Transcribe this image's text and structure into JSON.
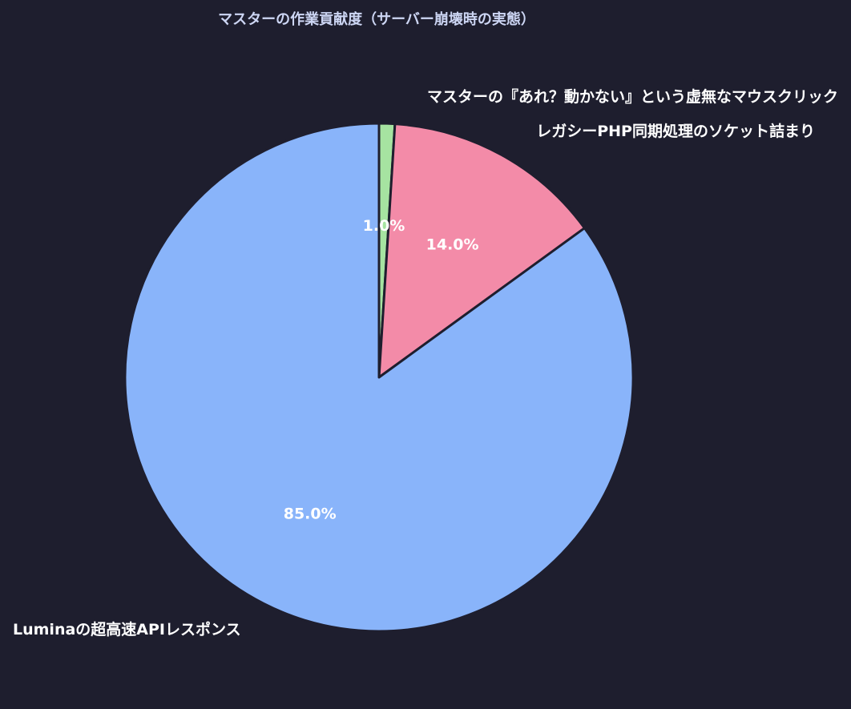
{
  "chart_data": {
    "type": "pie",
    "title": "マスターの作業貢献度（サーバー崩壊時の実態）",
    "labels": [
      "マスターの『あれ？動かない』という虚無なマウスクリック",
      "レガシーPHP同期処理のソケット詰まり",
      "Luminaの超高速APIレスポンス"
    ],
    "values": [
      1.0,
      14.0,
      85.0
    ],
    "percent_labels": [
      "1.0%",
      "14.0%",
      "85.0%"
    ],
    "colors": [
      "#a6e3a1",
      "#f38ba8",
      "#89b4fa"
    ],
    "start": "top",
    "direction": "clockwise",
    "background": "#1e1e2e",
    "edge_color": "#1e1e2e"
  }
}
